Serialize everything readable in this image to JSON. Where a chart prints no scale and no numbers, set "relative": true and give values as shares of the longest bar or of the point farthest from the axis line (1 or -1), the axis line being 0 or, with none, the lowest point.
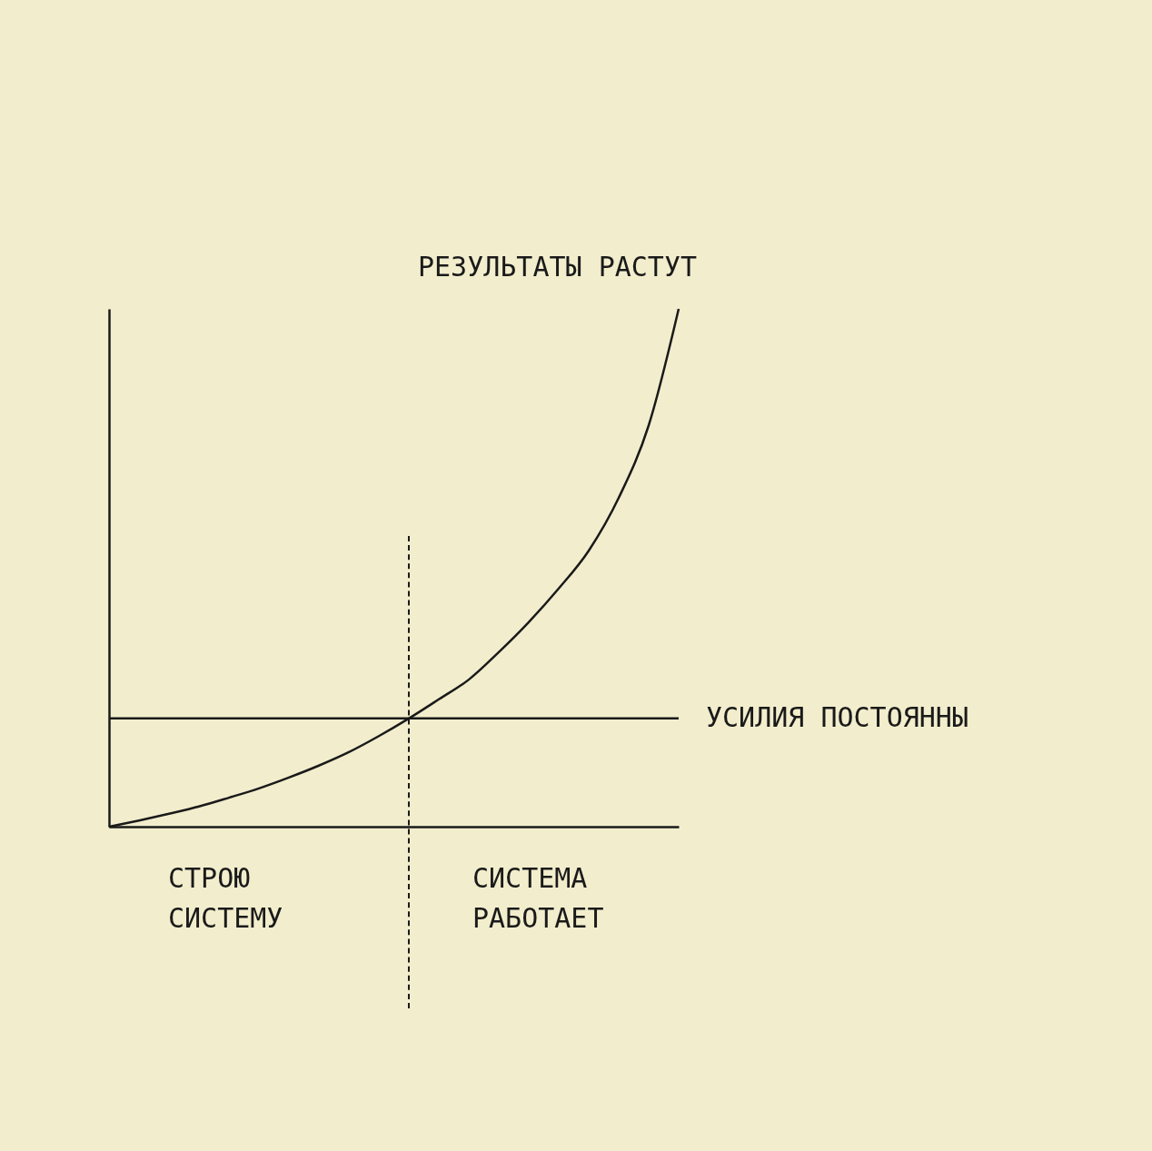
{
  "chart_data": {
    "type": "line",
    "relative": true,
    "categories": [
      null,
      null,
      null,
      null,
      null,
      null,
      null,
      null,
      null,
      null,
      null,
      null,
      null,
      null,
      null,
      null,
      null,
      null,
      null,
      null
    ],
    "series": [
      {
        "name": "РЕЗУЛЬТАТЫ РАСТУТ",
        "color": "#1a1a1a",
        "values": [
          0,
          0.012,
          0.025,
          0.039,
          0.056,
          0.074,
          0.095,
          0.118,
          0.144,
          0.175,
          0.209,
          0.246,
          0.284,
          0.337,
          0.395,
          0.46,
          0.533,
          0.635,
          0.775,
          1
        ]
      },
      {
        "name": "УСИЛИЯ ПОСТОЯННЫ",
        "color": "#1a1a1a",
        "values": [
          0.209,
          0.209,
          0.209,
          0.209,
          0.209,
          0.209,
          0.209,
          0.209,
          0.209,
          0.209,
          0.209,
          0.209,
          0.209,
          0.209,
          0.209,
          0.209,
          0.209,
          0.209,
          0.209,
          0.209
        ]
      }
    ],
    "annotations": [
      "СТРОЮ СИСТЕМУ",
      "СИСТЕМА РАБОТАЕТ"
    ],
    "legend": false,
    "marker": "none",
    "line_style": "solid"
  }
}
